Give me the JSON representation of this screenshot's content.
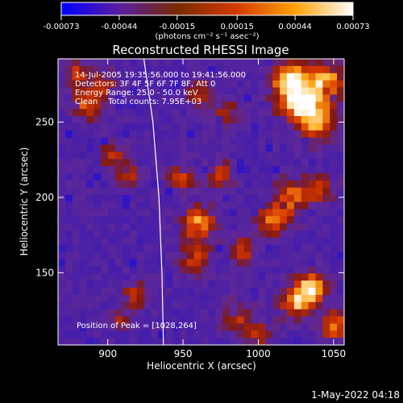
{
  "chart_data": {
    "type": "heatmap",
    "title": "Reconstructed RHESSI Image",
    "xlabel": "Heliocentric X (arcsec)",
    "ylabel": "Heliocentric Y (arcsec)",
    "xlim": [
      867,
      1057
    ],
    "ylim": [
      102,
      292
    ],
    "x_ticks": [
      900,
      950,
      1000,
      1050
    ],
    "y_ticks": [
      150,
      200,
      250
    ],
    "x_tick_labels": [
      "900",
      "950",
      "1000",
      "1050"
    ],
    "y_tick_labels": [
      "150",
      "200",
      "250"
    ],
    "colorbar": {
      "range": [
        -0.00073,
        0.00073
      ],
      "ticks": [
        -0.00073,
        -0.00044,
        -0.00015,
        0.00015,
        0.00044,
        0.00073
      ],
      "tick_labels": [
        "-0.00073",
        "-0.00044",
        "-0.00015",
        "0.00015",
        "0.00044",
        "0.00073"
      ],
      "units": "(photons cm⁻² s⁻¹ asec⁻²)",
      "colors": [
        "#0000ff",
        "#5a1fa0",
        "#7a2a00",
        "#d43a00",
        "#ffa000",
        "#ffffff"
      ]
    },
    "annotations": [
      "14-Jul-2005 19:35:56.000 to 19:41:56.000",
      "Detectors: 3F 4F 5F 6F 7F 8F, Att 0",
      "Energy Range: 25.0 - 50.0 keV",
      "Clean    Total counts: 7.95E+03"
    ],
    "peak_label": "Position of Peak = [1028,264]",
    "peak": [
      1028,
      264
    ],
    "limb_curve": [
      [
        924,
        292
      ],
      [
        930,
        250
      ],
      [
        934,
        200
      ],
      [
        936,
        150
      ],
      [
        937,
        102
      ]
    ],
    "bright_sources": [
      {
        "x": 1028,
        "y": 264,
        "level": 1.0,
        "spread": 10
      },
      {
        "x": 1020,
        "y": 280,
        "level": 0.8,
        "spread": 8
      },
      {
        "x": 1040,
        "y": 250,
        "level": 0.7,
        "spread": 9
      },
      {
        "x": 1045,
        "y": 278,
        "level": 0.8,
        "spread": 8
      },
      {
        "x": 1035,
        "y": 140,
        "level": 0.9,
        "spread": 7
      },
      {
        "x": 1025,
        "y": 130,
        "level": 0.8,
        "spread": 7
      },
      {
        "x": 1050,
        "y": 115,
        "level": 0.8,
        "spread": 6
      },
      {
        "x": 1010,
        "y": 185,
        "level": 0.7,
        "spread": 7
      },
      {
        "x": 1022,
        "y": 200,
        "level": 0.6,
        "spread": 8
      },
      {
        "x": 1040,
        "y": 205,
        "level": 0.5,
        "spread": 7
      },
      {
        "x": 960,
        "y": 183,
        "level": 0.75,
        "spread": 8
      },
      {
        "x": 958,
        "y": 160,
        "level": 0.5,
        "spread": 7
      },
      {
        "x": 950,
        "y": 213,
        "level": 0.6,
        "spread": 6
      },
      {
        "x": 975,
        "y": 215,
        "level": 0.5,
        "spread": 6
      },
      {
        "x": 990,
        "y": 165,
        "level": 0.5,
        "spread": 6
      },
      {
        "x": 978,
        "y": 258,
        "level": 0.35,
        "spread": 7
      },
      {
        "x": 960,
        "y": 270,
        "level": 0.4,
        "spread": 6
      },
      {
        "x": 985,
        "y": 120,
        "level": 0.45,
        "spread": 7
      },
      {
        "x": 1000,
        "y": 110,
        "level": 0.4,
        "spread": 7
      },
      {
        "x": 903,
        "y": 228,
        "level": 0.6,
        "spread": 5
      },
      {
        "x": 913,
        "y": 215,
        "level": 0.5,
        "spread": 5
      },
      {
        "x": 887,
        "y": 262,
        "level": 0.6,
        "spread": 7
      },
      {
        "x": 880,
        "y": 282,
        "level": 0.5,
        "spread": 6
      },
      {
        "x": 898,
        "y": 275,
        "level": 0.4,
        "spread": 6
      },
      {
        "x": 918,
        "y": 135,
        "level": 0.45,
        "spread": 6
      },
      {
        "x": 907,
        "y": 120,
        "level": 0.35,
        "spread": 5
      }
    ]
  },
  "footer": {
    "timestamp": "1-May-2022 04:18"
  }
}
